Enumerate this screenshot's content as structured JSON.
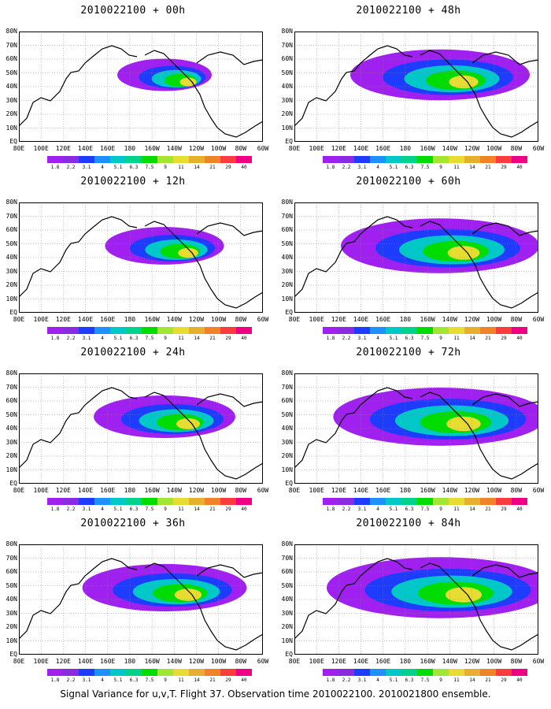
{
  "panels": [
    {
      "title": "2010022100 + 00h",
      "col": 0,
      "row": 0,
      "spread": 0.25
    },
    {
      "title": "2010022100 + 48h",
      "col": 1,
      "row": 0,
      "spread": 0.7
    },
    {
      "title": "2010022100 + 12h",
      "col": 0,
      "row": 1,
      "spread": 0.38
    },
    {
      "title": "2010022100 + 60h",
      "col": 1,
      "row": 1,
      "spread": 0.8
    },
    {
      "title": "2010022100 + 24h",
      "col": 0,
      "row": 2,
      "spread": 0.5
    },
    {
      "title": "2010022100 + 72h",
      "col": 1,
      "row": 2,
      "spread": 0.88
    },
    {
      "title": "2010022100 + 36h",
      "col": 0,
      "row": 3,
      "spread": 0.62
    },
    {
      "title": "2010022100 + 84h",
      "col": 1,
      "row": 3,
      "spread": 0.95
    }
  ],
  "lat_labels": [
    "80N",
    "70N",
    "60N",
    "50N",
    "40N",
    "30N",
    "20N",
    "10N",
    "EQ"
  ],
  "lon_labels": [
    "80E",
    "100E",
    "120E",
    "140E",
    "160E",
    "180",
    "160W",
    "140W",
    "120W",
    "100W",
    "80W",
    "60W"
  ],
  "colorbar": {
    "levels": [
      "1.8",
      "2.2",
      "3.1",
      "4",
      "5.1",
      "6.3",
      "7.5",
      "9",
      "11",
      "14",
      "21",
      "29",
      "40"
    ],
    "colors": [
      "#a020f0",
      "#8a2be2",
      "#1e3cff",
      "#1e90ff",
      "#00c8c8",
      "#00d28c",
      "#00dc00",
      "#a0e632",
      "#e6dc32",
      "#e6af2d",
      "#f08228",
      "#fa3c3c",
      "#f00082"
    ]
  },
  "caption": "Signal Variance for u,v,T. Flight 37. Observation time 2010022100. 2010021800 ensemble."
}
